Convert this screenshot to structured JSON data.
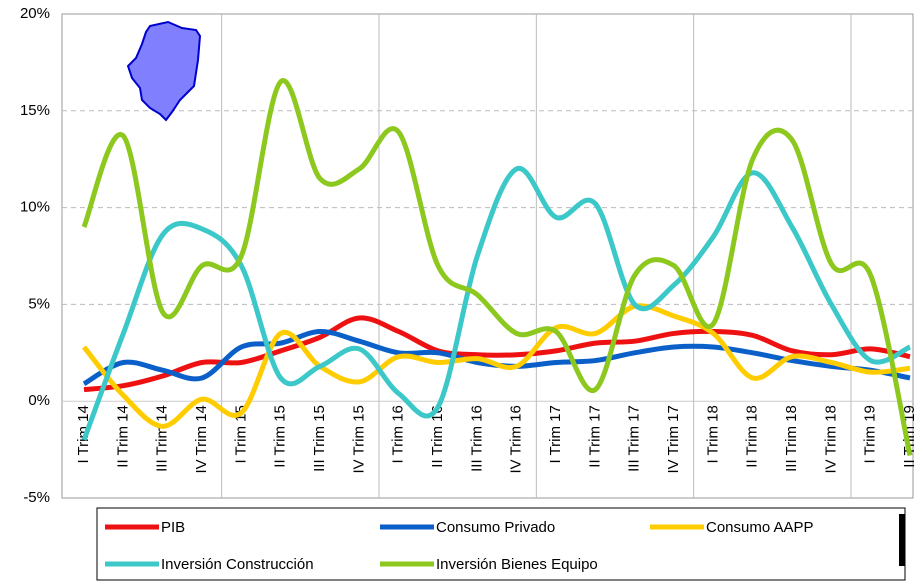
{
  "chart_data": {
    "type": "line",
    "categories": [
      "I Trim 14",
      "II Trim 14",
      "III Trim 14",
      "IV Trim 14",
      "I Trim 15",
      "II Trim 15",
      "III Trim 15",
      "IV Trim 15",
      "I Trim 16",
      "II Trim 16",
      "III Trim 16",
      "IV Trim 16",
      "I Trim 17",
      "II Trim 17",
      "III Trim 17",
      "IV Trim 17",
      "I Trim 18",
      "II Trim 18",
      "III Trim 18",
      "IV Trim 18",
      "I Trim 19",
      "II Trim 19"
    ],
    "series": [
      {
        "name": "PIB",
        "color": "#ee1111",
        "values": [
          0.6,
          0.8,
          1.3,
          2.0,
          2.0,
          2.6,
          3.3,
          4.3,
          3.6,
          2.6,
          2.4,
          2.4,
          2.6,
          3.0,
          3.1,
          3.5,
          3.6,
          3.4,
          2.6,
          2.4,
          2.7,
          2.3
        ]
      },
      {
        "name": "Consumo Privado",
        "color": "#0a5fc8",
        "values": [
          0.9,
          2.0,
          1.6,
          1.2,
          2.8,
          3.0,
          3.6,
          3.1,
          2.5,
          2.5,
          2.0,
          1.8,
          2.0,
          2.1,
          2.5,
          2.8,
          2.8,
          2.5,
          2.1,
          1.8,
          1.6,
          1.2
        ]
      },
      {
        "name": "Consumo AAPP",
        "color": "#ffcc00",
        "values": [
          2.8,
          0.3,
          -1.3,
          0.1,
          -0.6,
          3.5,
          1.8,
          1.0,
          2.3,
          2.0,
          2.2,
          1.8,
          3.8,
          3.5,
          4.9,
          4.4,
          3.5,
          1.2,
          2.3,
          2.0,
          1.5,
          1.7
        ]
      },
      {
        "name": "Inversión Construcción",
        "color": "#3cc8c8",
        "values": [
          -2.0,
          3.5,
          8.6,
          8.9,
          7.0,
          1.2,
          1.8,
          2.7,
          0.4,
          -0.3,
          7.5,
          12.0,
          9.5,
          10.2,
          5.0,
          6.0,
          8.5,
          11.8,
          9.0,
          5.0,
          2.1,
          2.8
        ]
      },
      {
        "name": "Inversión Bienes Equipo",
        "color": "#8cc81e",
        "values": [
          9.0,
          13.7,
          4.6,
          7.0,
          7.5,
          16.5,
          11.5,
          12.0,
          13.9,
          7.0,
          5.5,
          3.5,
          3.6,
          0.6,
          6.5,
          7.0,
          4.0,
          12.5,
          13.5,
          7.1,
          6.5,
          -2.8
        ]
      }
    ],
    "ylim": [
      -5,
      20
    ],
    "yticks": [
      {
        "value": -5,
        "label": "-5%"
      },
      {
        "value": 0,
        "label": "0%"
      },
      {
        "value": 5,
        "label": "5%"
      },
      {
        "value": 10,
        "label": "10%"
      },
      {
        "value": 15,
        "label": "15%"
      },
      {
        "value": 20,
        "label": "20%"
      }
    ],
    "grid": true
  }
}
